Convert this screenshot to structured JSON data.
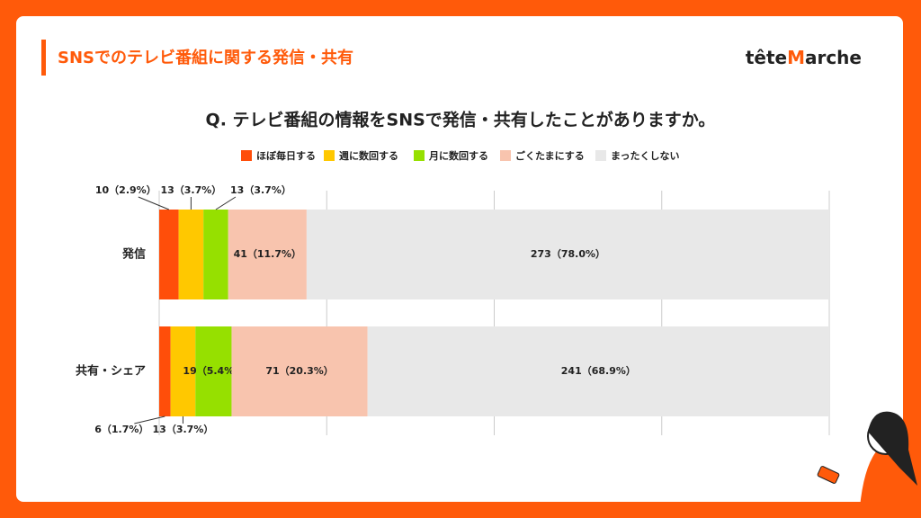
{
  "header": {
    "title": "SNSでのテレビ番組に関する発信・共有",
    "logo": [
      "tête",
      "M",
      "arche"
    ]
  },
  "chart_data": {
    "type": "stacked-barh",
    "title": "Q. テレビ番組の情報をSNSで発信・共有したことがありますか。",
    "categories": [
      "発信",
      "共有・シェア"
    ],
    "series": [
      {
        "name": "ほぼ毎日する",
        "color": "#ff4e0a",
        "values": [
          2.9,
          1.7
        ],
        "value_labels": [
          "10（2.9%）",
          "6（1.7%）"
        ]
      },
      {
        "name": "週に数回する",
        "color": "#ffc800",
        "values": [
          3.7,
          3.7
        ],
        "value_labels": [
          "13（3.7%）",
          "13（3.7%）"
        ]
      },
      {
        "name": "月に数回する",
        "color": "#96e000",
        "values": [
          3.7,
          5.4
        ],
        "value_labels": [
          "13（3.7%）",
          "19（5.4%）"
        ]
      },
      {
        "name": "ごくたまにする",
        "color": "#f8c4ae",
        "values": [
          11.7,
          20.3
        ],
        "value_labels": [
          "41（11.7%）",
          "71（20.3%）"
        ]
      },
      {
        "name": "まったくしない",
        "color": "#e8e8e8",
        "values": [
          78.0,
          68.9
        ],
        "value_labels": [
          "273（78.0%）",
          "241（68.9%）"
        ]
      }
    ],
    "xlim": [
      0,
      100
    ],
    "xticks": [
      0,
      25,
      50,
      75,
      100
    ],
    "grid": true,
    "legend": "top"
  }
}
